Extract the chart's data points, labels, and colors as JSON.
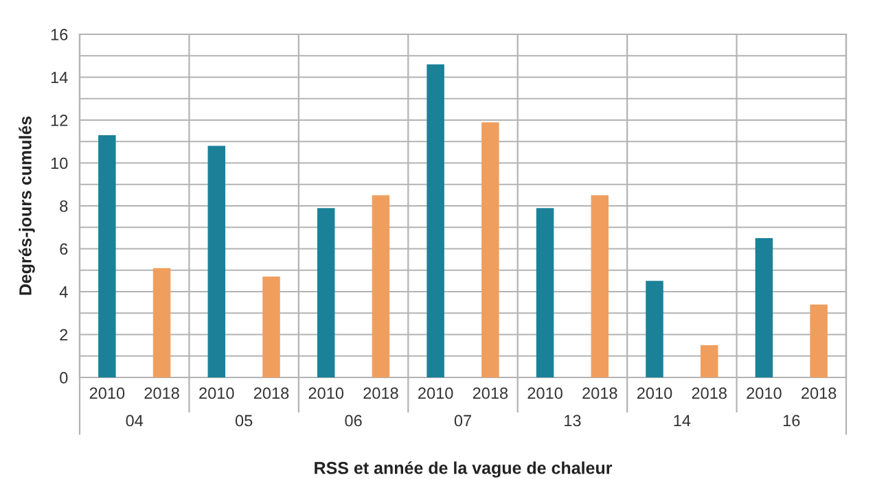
{
  "chart_data": {
    "type": "bar",
    "xlabel": "RSS et année de la vague de chaleur",
    "ylabel": "Degrés-jours cumulés",
    "categories": [
      "04",
      "05",
      "06",
      "07",
      "13",
      "14",
      "16"
    ],
    "series": [
      {
        "name": "2010",
        "color": "#1b8199",
        "values": [
          11.3,
          10.8,
          7.9,
          14.6,
          7.9,
          4.5,
          6.5
        ]
      },
      {
        "name": "2018",
        "color": "#f09e5e",
        "values": [
          5.1,
          4.7,
          8.5,
          11.9,
          8.5,
          1.5,
          3.4
        ]
      }
    ],
    "ylim": [
      0,
      16
    ],
    "yticks": [
      0,
      {
        "value": 1,
        "label": null
      },
      2,
      {
        "value": 3,
        "label": null
      },
      4,
      {
        "value": 5,
        "label": null
      },
      6,
      {
        "value": 7,
        "label": null
      },
      8,
      {
        "value": 9,
        "label": null
      },
      10,
      {
        "value": 11,
        "label": null
      },
      12,
      {
        "value": 13,
        "label": null
      },
      14,
      {
        "value": 15,
        "label": null
      },
      16
    ],
    "grid": "y",
    "legend": false
  }
}
